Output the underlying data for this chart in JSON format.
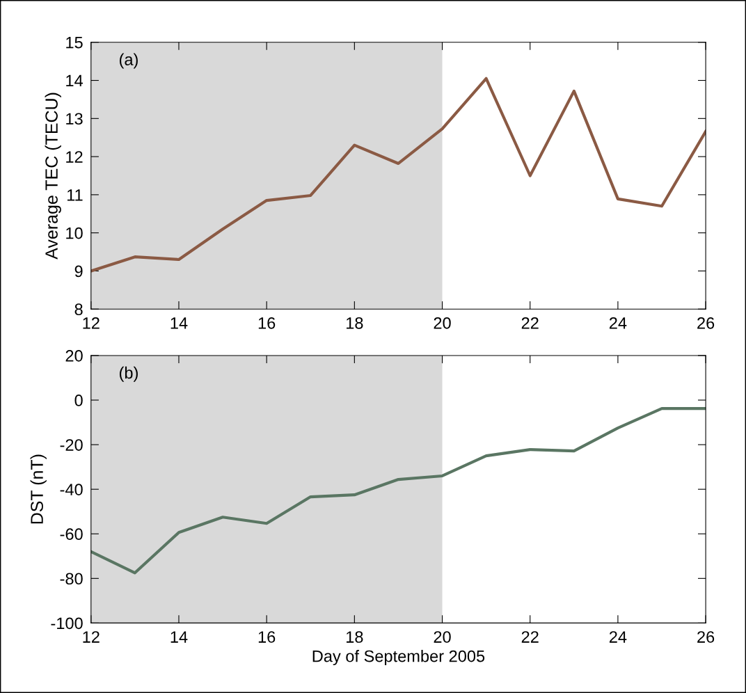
{
  "chart_data": [
    {
      "type": "line",
      "ylabel": "Average TEC (TECU)",
      "annotations": [
        "(a)"
      ],
      "x": [
        12,
        13,
        14,
        15,
        16,
        17,
        18,
        19,
        20,
        21,
        22,
        23,
        24,
        25,
        26
      ],
      "series": [
        {
          "color": "#8b5a44",
          "values": [
            9.0,
            9.37,
            9.3,
            10.1,
            10.85,
            10.98,
            12.3,
            11.82,
            12.73,
            14.05,
            11.5,
            13.72,
            10.89,
            10.7,
            12.66
          ]
        }
      ],
      "xlim": [
        12,
        26
      ],
      "xticks": [
        12,
        14,
        16,
        18,
        20,
        22,
        24,
        26
      ],
      "ylim": [
        8,
        15
      ],
      "yticks": [
        8,
        9,
        10,
        11,
        12,
        13,
        14,
        15
      ],
      "bands": [
        {
          "axis": "x",
          "from": 12,
          "to": 20,
          "color": "#d9d9d9"
        }
      ],
      "grid": false,
      "legend": false
    },
    {
      "type": "line",
      "xlabel": "Day of September 2005",
      "ylabel": "DST (nT)",
      "annotations": [
        "(b)"
      ],
      "x": [
        12,
        13,
        14,
        15,
        16,
        17,
        18,
        19,
        20,
        21,
        22,
        23,
        24,
        25,
        26
      ],
      "series": [
        {
          "color": "#5a7663",
          "values": [
            -68,
            -77.5,
            -59.4,
            -52.5,
            -55.3,
            -43.4,
            -42.5,
            -35.6,
            -34,
            -25,
            -22.2,
            -22.8,
            -12.5,
            -3.8,
            -3.8
          ]
        }
      ],
      "xlim": [
        12,
        26
      ],
      "xticks": [
        12,
        14,
        16,
        18,
        20,
        22,
        24,
        26
      ],
      "ylim": [
        -100,
        20
      ],
      "yticks": [
        -100,
        -80,
        -60,
        -40,
        -20,
        0,
        20
      ],
      "bands": [
        {
          "axis": "x",
          "from": 12,
          "to": 20,
          "color": "#d9d9d9"
        }
      ],
      "grid": false,
      "legend": false
    }
  ]
}
